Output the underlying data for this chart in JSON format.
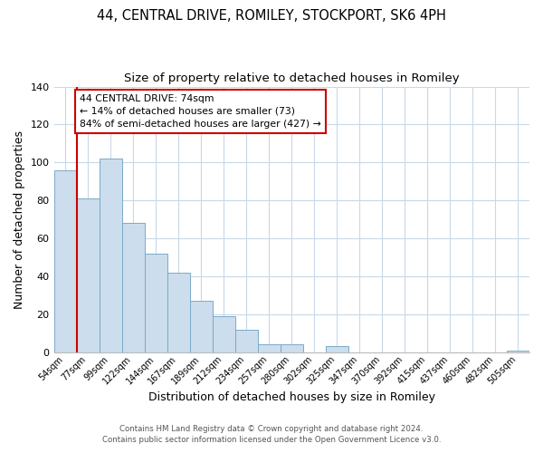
{
  "title": "44, CENTRAL DRIVE, ROMILEY, STOCKPORT, SK6 4PH",
  "subtitle": "Size of property relative to detached houses in Romiley",
  "xlabel": "Distribution of detached houses by size in Romiley",
  "ylabel": "Number of detached properties",
  "bar_labels": [
    "54sqm",
    "77sqm",
    "99sqm",
    "122sqm",
    "144sqm",
    "167sqm",
    "189sqm",
    "212sqm",
    "234sqm",
    "257sqm",
    "280sqm",
    "302sqm",
    "325sqm",
    "347sqm",
    "370sqm",
    "392sqm",
    "415sqm",
    "437sqm",
    "460sqm",
    "482sqm",
    "505sqm"
  ],
  "bar_values": [
    96,
    81,
    102,
    68,
    52,
    42,
    27,
    19,
    12,
    4,
    4,
    0,
    3,
    0,
    0,
    0,
    0,
    0,
    0,
    0,
    1
  ],
  "bar_color": "#ccdded",
  "bar_edge_color": "#7aaac8",
  "highlight_line_color": "#cc0000",
  "annotation_title": "44 CENTRAL DRIVE: 74sqm",
  "annotation_line1": "← 14% of detached houses are smaller (73)",
  "annotation_line2": "84% of semi-detached houses are larger (427) →",
  "annotation_box_color": "#ffffff",
  "annotation_box_edge": "#cc0000",
  "ylim": [
    0,
    140
  ],
  "yticks": [
    0,
    20,
    40,
    60,
    80,
    100,
    120,
    140
  ],
  "footer1": "Contains HM Land Registry data © Crown copyright and database right 2024.",
  "footer2": "Contains public sector information licensed under the Open Government Licence v3.0.",
  "background_color": "#ffffff",
  "grid_color": "#c8d8e8"
}
